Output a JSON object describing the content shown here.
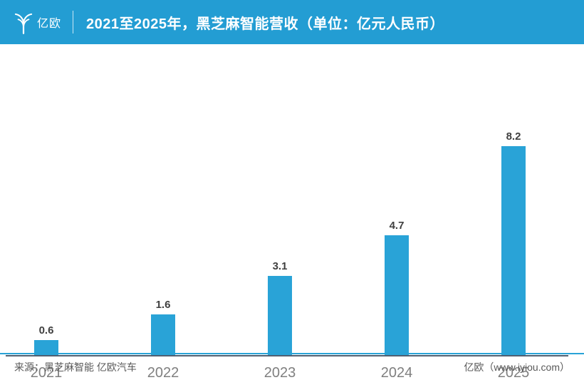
{
  "header": {
    "logo_text": "亿欧",
    "title": "2021至2025年，黑芝麻智能营收（单位：亿元人民币）"
  },
  "chart_data": {
    "type": "bar",
    "title": "2021至2025年，黑芝麻智能营收（单位：亿元人民币）",
    "unit": "亿元人民币",
    "categories": [
      "2021",
      "2022",
      "2023",
      "2024",
      "2025"
    ],
    "values": [
      0.6,
      1.6,
      3.1,
      4.7,
      8.2
    ],
    "xlabel": "",
    "ylabel": "",
    "ylim": [
      0,
      9
    ],
    "grid": false,
    "legend": false,
    "value_labels_shown": true,
    "bar_color": "#29A3D7",
    "value_label_color": "#3F3F3F",
    "tick_label_color": "#7F7F7F",
    "axis_color": "#506072",
    "accent_color": "#239DD3"
  },
  "footer": {
    "source": "来源：黑芝麻智能 亿欧汽车",
    "site": "亿欧（www.iyiou.com）"
  }
}
